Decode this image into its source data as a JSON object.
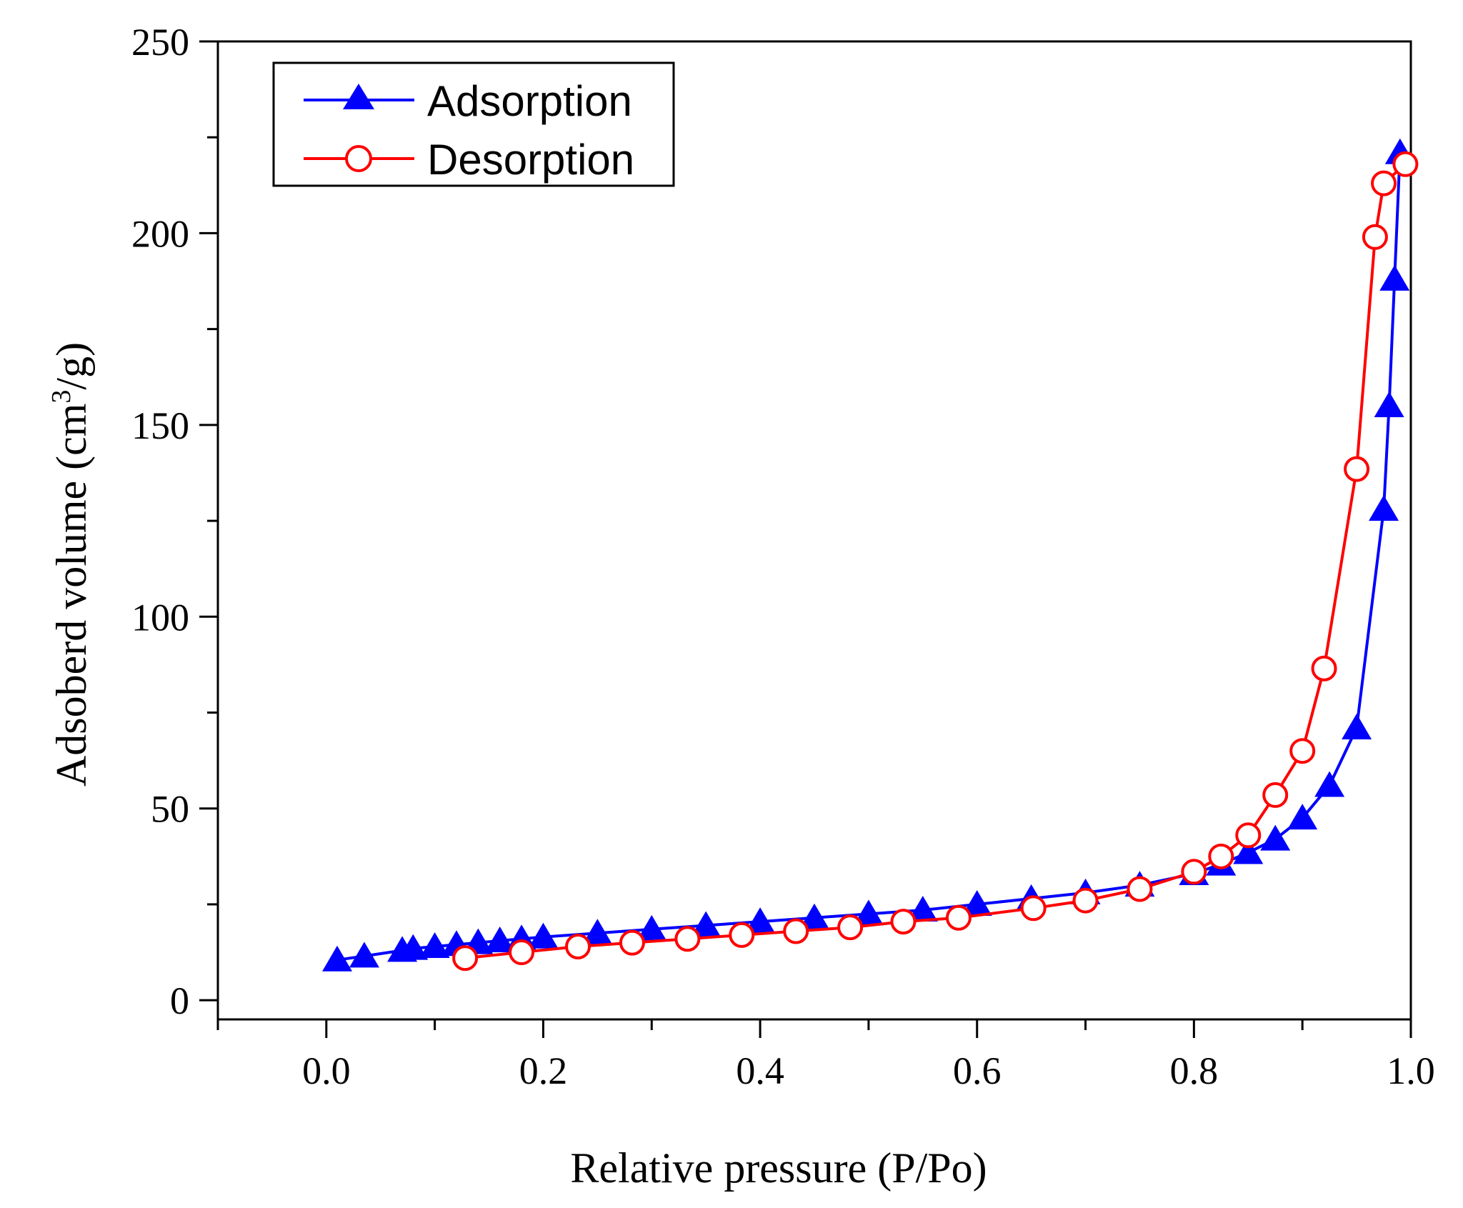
{
  "chart_data": {
    "type": "line",
    "xlabel": "Relative pressure (P/Po)",
    "ylabel_main": "Adsoberd volume (cm",
    "ylabel_sup": "3",
    "ylabel_end": "/g)",
    "xlim": [
      -0.1,
      1.0
    ],
    "ylim": [
      -5,
      250
    ],
    "x_ticks": [
      0.0,
      0.2,
      0.4,
      0.6,
      0.8,
      1.0
    ],
    "x_tick_labels": [
      "0.0",
      "0.2",
      "0.4",
      "0.6",
      "0.8",
      "1.0"
    ],
    "x_minor_ticks": [
      -0.1,
      0.1,
      0.3,
      0.5,
      0.7,
      0.9
    ],
    "y_ticks": [
      0,
      50,
      100,
      150,
      200,
      250
    ],
    "y_tick_labels": [
      "0",
      "50",
      "100",
      "150",
      "200",
      "250"
    ],
    "y_minor_ticks": [
      25,
      75,
      125,
      175,
      225
    ],
    "grid": false,
    "legend_position": "top-left",
    "series": [
      {
        "name": "Adsorption",
        "color": "#0000ff",
        "marker": "filled-triangle",
        "x": [
          0.01,
          0.035,
          0.07,
          0.08,
          0.1,
          0.12,
          0.14,
          0.16,
          0.18,
          0.2,
          0.25,
          0.3,
          0.35,
          0.4,
          0.45,
          0.5,
          0.55,
          0.6,
          0.65,
          0.7,
          0.75,
          0.8,
          0.825,
          0.85,
          0.875,
          0.9,
          0.925,
          0.95,
          0.975,
          0.98,
          0.985,
          0.99
        ],
        "y": [
          10.5,
          11.5,
          13,
          13.5,
          14,
          14.5,
          15,
          15.5,
          16,
          16.5,
          17.5,
          18.5,
          19.5,
          20.5,
          21.5,
          22.5,
          23.5,
          25,
          26.5,
          28,
          30,
          33,
          35.5,
          38.5,
          42,
          47.5,
          56,
          71,
          128,
          155,
          188,
          221
        ]
      },
      {
        "name": "Desorption",
        "color": "#ff0000",
        "marker": "open-circle",
        "x": [
          0.128,
          0.18,
          0.232,
          0.282,
          0.333,
          0.383,
          0.433,
          0.483,
          0.532,
          0.583,
          0.652,
          0.7,
          0.75,
          0.8,
          0.825,
          0.85,
          0.875,
          0.9,
          0.92,
          0.95,
          0.967,
          0.975,
          0.995
        ],
        "y": [
          11,
          12.5,
          14,
          15,
          16,
          17,
          18,
          19,
          20.5,
          21.5,
          24,
          26,
          29,
          33.5,
          37.5,
          43,
          53.5,
          65,
          86.5,
          138.5,
          199,
          213,
          218
        ]
      }
    ]
  }
}
